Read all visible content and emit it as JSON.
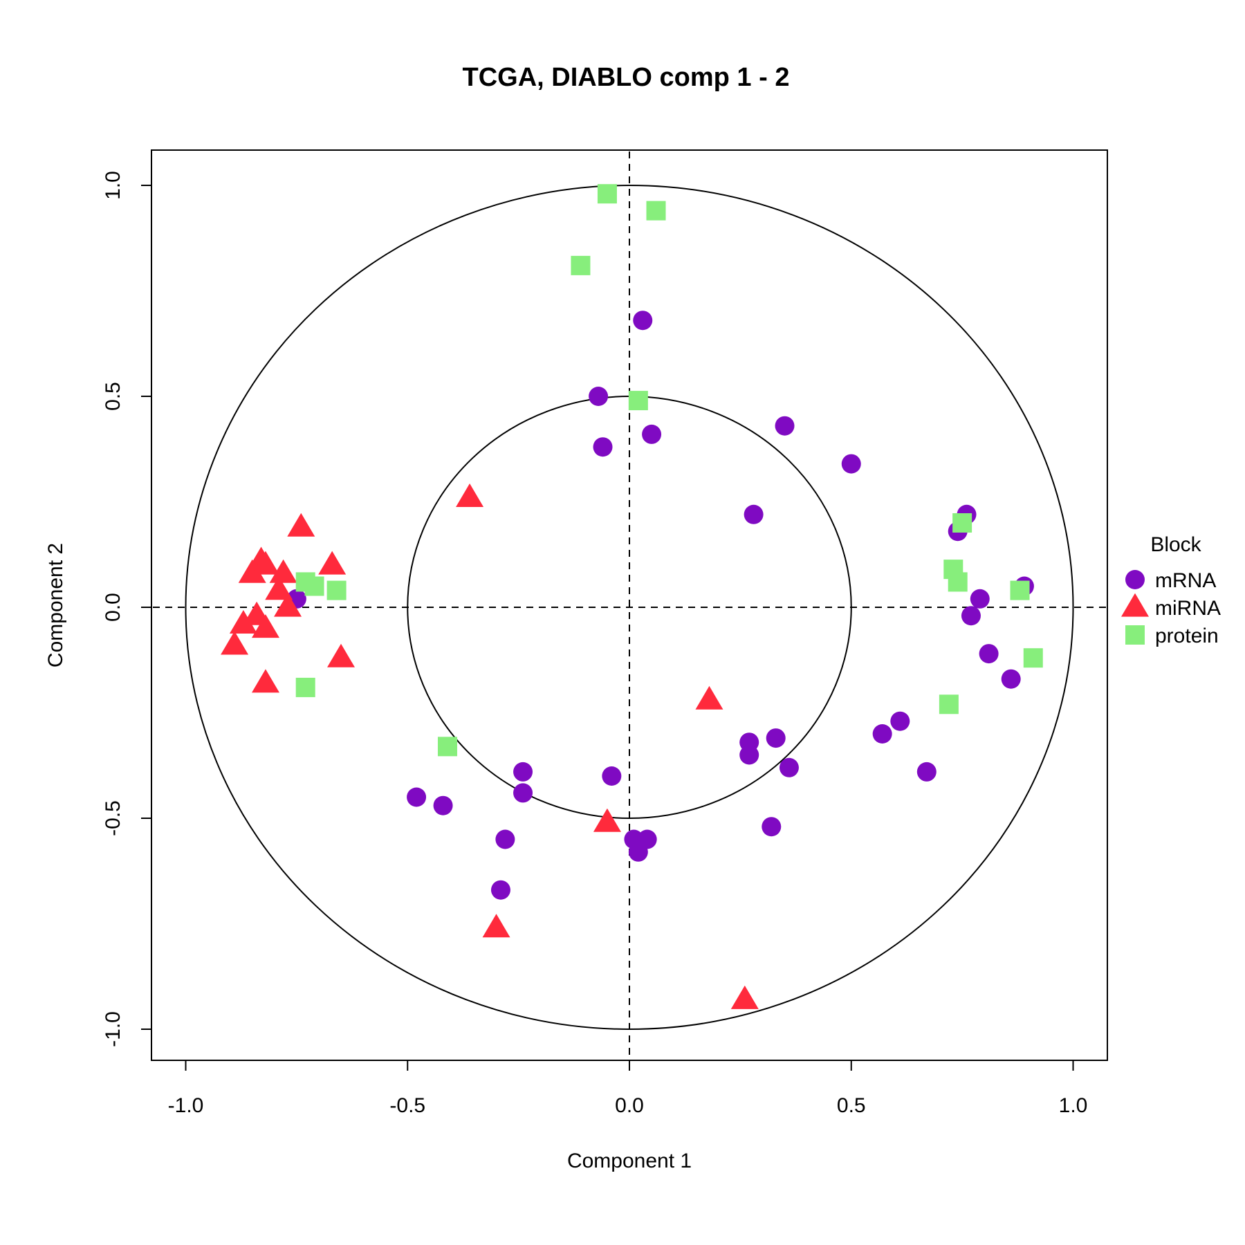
{
  "chart_data": {
    "type": "scatter",
    "title": "TCGA, DIABLO comp 1 - 2",
    "xlabel": "Component  1",
    "ylabel": "Component  2",
    "xlim": [
      -1.08,
      1.08
    ],
    "ylim": [
      -1.08,
      1.08
    ],
    "x_ticks": [
      "-1.0",
      "-0.5",
      "0.0",
      "0.5",
      "1.0"
    ],
    "y_ticks": [
      "-1.0",
      "-0.5",
      "0.0",
      "0.5",
      "1.0"
    ],
    "circles": [
      0.5,
      1.0
    ],
    "reference_lines": {
      "x": 0,
      "y": 0,
      "style": "dashed"
    },
    "legend": {
      "title": "Block",
      "placement": "right"
    },
    "series": [
      {
        "name": "mRNA",
        "marker": "circle",
        "color": "#7f0ac2",
        "points": [
          [
            0.03,
            0.68
          ],
          [
            -0.07,
            0.5
          ],
          [
            -0.06,
            0.38
          ],
          [
            0.05,
            0.41
          ],
          [
            0.35,
            0.43
          ],
          [
            0.5,
            0.34
          ],
          [
            0.28,
            0.22
          ],
          [
            0.76,
            0.22
          ],
          [
            0.74,
            0.18
          ],
          [
            0.89,
            0.05
          ],
          [
            0.79,
            0.02
          ],
          [
            0.77,
            -0.02
          ],
          [
            0.81,
            -0.11
          ],
          [
            0.86,
            -0.17
          ],
          [
            0.61,
            -0.27
          ],
          [
            0.57,
            -0.3
          ],
          [
            0.67,
            -0.39
          ],
          [
            0.27,
            -0.32
          ],
          [
            0.27,
            -0.35
          ],
          [
            0.33,
            -0.31
          ],
          [
            0.36,
            -0.38
          ],
          [
            0.32,
            -0.52
          ],
          [
            -0.04,
            -0.4
          ],
          [
            0.01,
            -0.55
          ],
          [
            0.04,
            -0.55
          ],
          [
            0.02,
            -0.58
          ],
          [
            -0.24,
            -0.39
          ],
          [
            -0.24,
            -0.44
          ],
          [
            -0.48,
            -0.45
          ],
          [
            -0.42,
            -0.47
          ],
          [
            -0.28,
            -0.55
          ],
          [
            -0.29,
            -0.67
          ],
          [
            -0.75,
            0.02
          ]
        ]
      },
      {
        "name": "miRNA",
        "marker": "triangle",
        "color": "#ff2a3c",
        "points": [
          [
            -0.74,
            0.19
          ],
          [
            -0.83,
            0.11
          ],
          [
            -0.85,
            0.08
          ],
          [
            -0.82,
            0.1
          ],
          [
            -0.78,
            0.08
          ],
          [
            -0.67,
            0.1
          ],
          [
            -0.79,
            0.04
          ],
          [
            -0.77,
            0.0
          ],
          [
            -0.84,
            -0.02
          ],
          [
            -0.87,
            -0.04
          ],
          [
            -0.82,
            -0.05
          ],
          [
            -0.89,
            -0.09
          ],
          [
            -0.65,
            -0.12
          ],
          [
            -0.82,
            -0.18
          ],
          [
            -0.36,
            0.26
          ],
          [
            0.18,
            -0.22
          ],
          [
            -0.05,
            -0.51
          ],
          [
            -0.3,
            -0.76
          ],
          [
            0.26,
            -0.93
          ]
        ]
      },
      {
        "name": "protein",
        "marker": "square",
        "color": "#87ee7c",
        "points": [
          [
            -0.05,
            0.98
          ],
          [
            0.06,
            0.94
          ],
          [
            -0.11,
            0.81
          ],
          [
            0.02,
            0.49
          ],
          [
            -0.73,
            0.06
          ],
          [
            -0.71,
            0.05
          ],
          [
            -0.66,
            0.04
          ],
          [
            -0.73,
            -0.19
          ],
          [
            -0.41,
            -0.33
          ],
          [
            0.75,
            0.2
          ],
          [
            0.73,
            0.09
          ],
          [
            0.74,
            0.06
          ],
          [
            0.88,
            0.04
          ],
          [
            0.91,
            -0.12
          ],
          [
            0.72,
            -0.23
          ]
        ]
      }
    ]
  }
}
